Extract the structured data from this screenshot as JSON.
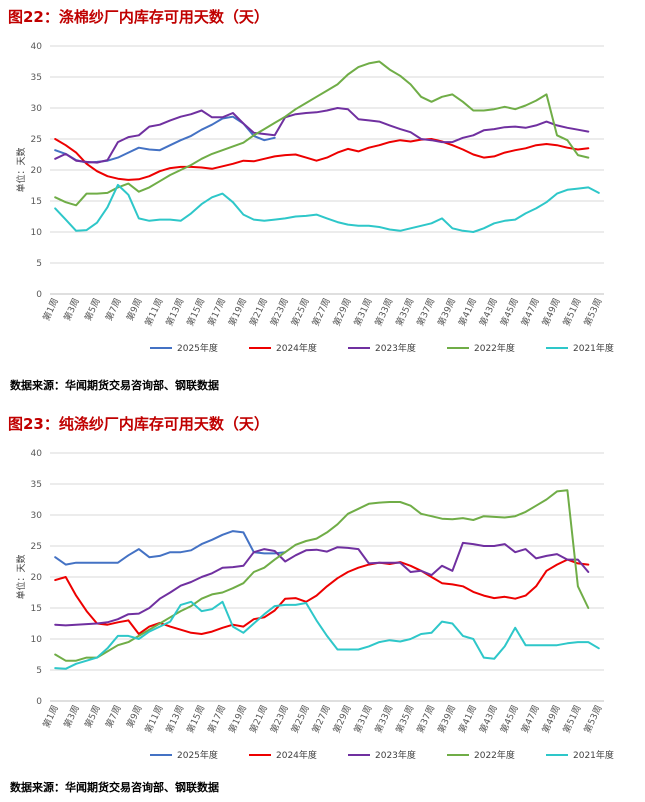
{
  "source_text": "数据来源：华闻期货交易咨询部、钢联数据",
  "chart_data": [
    {
      "type": "line",
      "title": "图22：涤棉纱厂内库存可用天数（天）",
      "ylabel": "单位：天数",
      "ylim": [
        0,
        40
      ],
      "yticks": [
        0,
        5,
        10,
        15,
        20,
        25,
        30,
        35,
        40
      ],
      "week_labels": [
        "第1周",
        "第3周",
        "第5周",
        "第7周",
        "第9周",
        "第11周",
        "第13周",
        "第15周",
        "第17周",
        "第19周",
        "第21周",
        "第23周",
        "第25周",
        "第27周",
        "第29周",
        "第31周",
        "第33周",
        "第35周",
        "第37周",
        "第39周",
        "第41周",
        "第43周",
        "第45周",
        "第47周",
        "第49周",
        "第51周",
        "第53周"
      ],
      "series": [
        {
          "name": "2025年度",
          "color": "#4472c4",
          "x": [
            1,
            2,
            3,
            4,
            5,
            6,
            7,
            8,
            9,
            10,
            11,
            12,
            13,
            14,
            15,
            16,
            17,
            18,
            19,
            20,
            21,
            22
          ],
          "values": [
            23.2,
            22.6,
            21.6,
            21.2,
            21.3,
            21.5,
            22.0,
            22.8,
            23.6,
            23.3,
            23.2,
            24.0,
            24.8,
            25.5,
            26.5,
            27.3,
            28.3,
            28.6,
            27.5,
            25.5,
            24.8,
            25.2
          ]
        },
        {
          "name": "2024年度",
          "color": "#ed0000",
          "x": [
            1,
            2,
            3,
            4,
            5,
            6,
            7,
            8,
            9,
            10,
            11,
            12,
            13,
            14,
            15,
            16,
            17,
            18,
            19,
            20,
            21,
            22,
            23,
            24,
            25,
            26,
            27,
            28,
            29,
            30,
            31,
            32,
            33,
            34,
            35,
            36,
            37,
            38,
            39,
            40,
            41,
            42,
            43,
            44,
            45,
            46,
            47,
            48,
            49,
            50,
            51,
            52
          ],
          "values": [
            25.0,
            24.0,
            22.8,
            21.0,
            19.8,
            19.0,
            18.6,
            18.4,
            18.5,
            19.0,
            19.8,
            20.3,
            20.5,
            20.5,
            20.4,
            20.2,
            20.6,
            21.0,
            21.5,
            21.4,
            21.8,
            22.2,
            22.4,
            22.5,
            22.0,
            21.5,
            22.0,
            22.8,
            23.4,
            23.0,
            23.6,
            24.0,
            24.5,
            24.8,
            24.6,
            24.9,
            25.0,
            24.6,
            24.0,
            23.3,
            22.5,
            22.0,
            22.2,
            22.8,
            23.2,
            23.5,
            24.0,
            24.2,
            24.0,
            23.6,
            23.3,
            23.5
          ]
        },
        {
          "name": "2023年度",
          "color": "#7030a0",
          "x": [
            1,
            2,
            3,
            4,
            5,
            6,
            7,
            8,
            9,
            10,
            11,
            12,
            13,
            14,
            15,
            16,
            17,
            18,
            19,
            20,
            21,
            22,
            23,
            24,
            25,
            26,
            27,
            28,
            29,
            30,
            31,
            32,
            33,
            34,
            35,
            36,
            37,
            38,
            39,
            40,
            41,
            42,
            43,
            44,
            45,
            46,
            47,
            48,
            49,
            50,
            51,
            52
          ],
          "values": [
            21.8,
            22.6,
            21.5,
            21.3,
            21.2,
            21.6,
            24.5,
            25.3,
            25.6,
            27.0,
            27.3,
            28.0,
            28.6,
            29.0,
            29.6,
            28.5,
            28.5,
            29.2,
            27.5,
            26.0,
            25.8,
            25.6,
            28.5,
            29.0,
            29.2,
            29.3,
            29.6,
            30.0,
            29.8,
            28.2,
            28.0,
            27.8,
            27.2,
            26.6,
            26.1,
            25.0,
            24.8,
            24.5,
            24.5,
            25.2,
            25.6,
            26.4,
            26.6,
            26.9,
            27.0,
            26.8,
            27.2,
            27.8,
            27.2,
            26.8,
            26.5,
            26.2
          ]
        },
        {
          "name": "2022年度",
          "color": "#70ad47",
          "x": [
            1,
            2,
            3,
            4,
            5,
            6,
            7,
            8,
            9,
            10,
            11,
            12,
            13,
            14,
            15,
            16,
            17,
            18,
            19,
            20,
            21,
            22,
            23,
            24,
            25,
            26,
            27,
            28,
            29,
            30,
            31,
            32,
            33,
            34,
            35,
            36,
            37,
            38,
            39,
            40,
            41,
            42,
            43,
            44,
            45,
            46,
            47,
            48,
            49,
            50,
            51,
            52
          ],
          "values": [
            15.6,
            14.8,
            14.3,
            16.2,
            16.2,
            16.3,
            17.2,
            17.8,
            16.5,
            17.2,
            18.2,
            19.2,
            20.0,
            20.8,
            21.8,
            22.6,
            23.2,
            23.8,
            24.4,
            25.6,
            26.6,
            27.6,
            28.6,
            29.8,
            30.8,
            31.8,
            32.8,
            33.8,
            35.4,
            36.6,
            37.2,
            37.5,
            36.2,
            35.2,
            33.8,
            31.8,
            31.0,
            31.8,
            32.2,
            31.0,
            29.6,
            29.6,
            29.8,
            30.2,
            29.8,
            30.4,
            31.2,
            32.2,
            25.6,
            24.8,
            22.4,
            22.0
          ]
        },
        {
          "name": "2021年度",
          "color": "#2ec7c9",
          "x": [
            1,
            2,
            3,
            4,
            5,
            6,
            7,
            8,
            9,
            10,
            11,
            12,
            13,
            14,
            15,
            16,
            17,
            18,
            19,
            20,
            21,
            22,
            23,
            24,
            25,
            26,
            27,
            28,
            29,
            30,
            31,
            32,
            33,
            34,
            35,
            36,
            37,
            38,
            39,
            40,
            41,
            42,
            43,
            44,
            45,
            46,
            47,
            48,
            49,
            50,
            51,
            52,
            53
          ],
          "values": [
            13.8,
            12.0,
            10.2,
            10.3,
            11.5,
            14.0,
            17.6,
            16.0,
            12.2,
            11.8,
            12.0,
            12.0,
            11.8,
            13.0,
            14.5,
            15.6,
            16.2,
            14.8,
            12.8,
            12.0,
            11.8,
            12.0,
            12.2,
            12.5,
            12.6,
            12.8,
            12.2,
            11.6,
            11.2,
            11.0,
            11.0,
            10.8,
            10.4,
            10.2,
            10.6,
            11.0,
            11.4,
            12.2,
            10.6,
            10.2,
            10.0,
            10.6,
            11.4,
            11.8,
            12.0,
            13.0,
            13.8,
            14.8,
            16.2,
            16.8,
            17.0,
            17.2,
            16.3
          ]
        }
      ]
    },
    {
      "type": "line",
      "title": "图23：纯涤纱厂内库存可用天数（天）",
      "ylabel": "单位：天数",
      "ylim": [
        0,
        40
      ],
      "yticks": [
        0,
        5,
        10,
        15,
        20,
        25,
        30,
        35,
        40
      ],
      "week_labels": [
        "第1周",
        "第3周",
        "第5周",
        "第7周",
        "第9周",
        "第11周",
        "第13周",
        "第15周",
        "第17周",
        "第19周",
        "第21周",
        "第23周",
        "第25周",
        "第27周",
        "第29周",
        "第31周",
        "第33周",
        "第35周",
        "第37周",
        "第39周",
        "第41周",
        "第43周",
        "第45周",
        "第47周",
        "第49周",
        "第51周",
        "第53周"
      ],
      "series": [
        {
          "name": "2025年度",
          "color": "#4472c4",
          "x": [
            1,
            2,
            3,
            4,
            5,
            6,
            7,
            8,
            9,
            10,
            11,
            12,
            13,
            14,
            15,
            16,
            17,
            18,
            19,
            20,
            21,
            22,
            23
          ],
          "values": [
            23.2,
            22.0,
            22.3,
            22.3,
            22.3,
            22.3,
            22.3,
            23.5,
            24.5,
            23.2,
            23.4,
            24.0,
            24.0,
            24.3,
            25.3,
            26.0,
            26.8,
            27.4,
            27.2,
            24.0,
            23.8,
            23.8,
            24.0
          ]
        },
        {
          "name": "2024年度",
          "color": "#ed0000",
          "x": [
            1,
            2,
            3,
            4,
            5,
            6,
            7,
            8,
            9,
            10,
            11,
            12,
            13,
            14,
            15,
            16,
            17,
            18,
            19,
            20,
            21,
            22,
            23,
            24,
            25,
            26,
            27,
            28,
            29,
            30,
            31,
            32,
            33,
            34,
            35,
            36,
            37,
            38,
            39,
            40,
            41,
            42,
            43,
            44,
            45,
            46,
            47,
            48,
            49,
            50,
            51,
            52
          ],
          "values": [
            19.5,
            20.0,
            17.0,
            14.5,
            12.5,
            12.3,
            12.7,
            13.0,
            10.8,
            12.0,
            12.6,
            12.0,
            11.5,
            11.0,
            10.8,
            11.2,
            11.8,
            12.3,
            12.0,
            13.2,
            13.5,
            14.6,
            16.5,
            16.6,
            16.0,
            17.0,
            18.5,
            19.8,
            20.8,
            21.5,
            22.0,
            22.3,
            22.1,
            22.4,
            21.8,
            21.0,
            20.0,
            19.0,
            18.8,
            18.5,
            17.6,
            17.0,
            16.6,
            16.8,
            16.5,
            17.0,
            18.5,
            21.0,
            22.0,
            22.8,
            22.2,
            22.0
          ]
        },
        {
          "name": "2023年度",
          "color": "#7030a0",
          "x": [
            1,
            2,
            3,
            4,
            5,
            6,
            7,
            8,
            9,
            10,
            11,
            12,
            13,
            14,
            15,
            16,
            17,
            18,
            19,
            20,
            21,
            22,
            23,
            24,
            25,
            26,
            27,
            28,
            29,
            30,
            31,
            32,
            33,
            34,
            35,
            36,
            37,
            38,
            39,
            40,
            41,
            42,
            43,
            44,
            45,
            46,
            47,
            48,
            49,
            50,
            51,
            52
          ],
          "values": [
            12.3,
            12.2,
            12.3,
            12.4,
            12.5,
            12.7,
            13.2,
            14.0,
            14.1,
            15.0,
            16.5,
            17.5,
            18.6,
            19.2,
            20.0,
            20.6,
            21.5,
            21.6,
            21.8,
            24.0,
            24.5,
            24.2,
            22.5,
            23.5,
            24.3,
            24.4,
            24.1,
            24.8,
            24.7,
            24.5,
            22.2,
            22.3,
            22.3,
            22.3,
            20.8,
            21.0,
            20.3,
            21.8,
            21.0,
            25.5,
            25.3,
            25.0,
            25.0,
            25.3,
            24.0,
            24.5,
            23.0,
            23.4,
            23.7,
            22.8,
            22.8,
            20.8
          ]
        },
        {
          "name": "2022年度",
          "color": "#70ad47",
          "x": [
            1,
            2,
            3,
            4,
            5,
            6,
            7,
            8,
            9,
            10,
            11,
            12,
            13,
            14,
            15,
            16,
            17,
            18,
            19,
            20,
            21,
            22,
            23,
            24,
            25,
            26,
            27,
            28,
            29,
            30,
            31,
            32,
            33,
            34,
            35,
            36,
            37,
            38,
            39,
            40,
            41,
            42,
            43,
            44,
            45,
            46,
            47,
            48,
            49,
            50,
            51,
            52
          ],
          "values": [
            7.5,
            6.5,
            6.5,
            7.0,
            7.0,
            8.0,
            9.0,
            9.5,
            10.5,
            11.5,
            12.5,
            13.5,
            14.5,
            15.3,
            16.5,
            17.2,
            17.5,
            18.2,
            19.0,
            20.8,
            21.5,
            22.8,
            24.0,
            25.2,
            25.8,
            26.2,
            27.2,
            28.5,
            30.2,
            31.0,
            31.8,
            32.0,
            32.1,
            32.1,
            31.5,
            30.2,
            29.8,
            29.4,
            29.3,
            29.5,
            29.2,
            29.8,
            29.7,
            29.6,
            29.8,
            30.5,
            31.5,
            32.5,
            33.8,
            34.0,
            18.5,
            15.0
          ]
        },
        {
          "name": "2021年度",
          "color": "#2ec7c9",
          "x": [
            1,
            2,
            3,
            4,
            5,
            6,
            7,
            8,
            9,
            10,
            11,
            12,
            13,
            14,
            15,
            16,
            17,
            18,
            19,
            20,
            21,
            22,
            23,
            24,
            25,
            26,
            27,
            28,
            29,
            30,
            31,
            32,
            33,
            34,
            35,
            36,
            37,
            38,
            39,
            40,
            41,
            42,
            43,
            44,
            45,
            46,
            47,
            48,
            49,
            50,
            51,
            52,
            53
          ],
          "values": [
            5.3,
            5.2,
            6.0,
            6.5,
            7.0,
            8.5,
            10.5,
            10.5,
            10.0,
            11.2,
            12.0,
            12.8,
            15.5,
            16.0,
            14.5,
            14.8,
            16.0,
            12.0,
            11.0,
            12.5,
            14.0,
            15.3,
            15.5,
            15.5,
            15.8,
            13.0,
            10.5,
            8.3,
            8.3,
            8.3,
            8.8,
            9.5,
            9.8,
            9.6,
            10.0,
            10.8,
            11.0,
            12.8,
            12.5,
            10.5,
            10.0,
            7.0,
            6.8,
            8.8,
            11.8,
            9.0,
            9.0,
            9.0,
            9.0,
            9.3,
            9.5,
            9.5,
            8.5
          ]
        }
      ]
    }
  ]
}
